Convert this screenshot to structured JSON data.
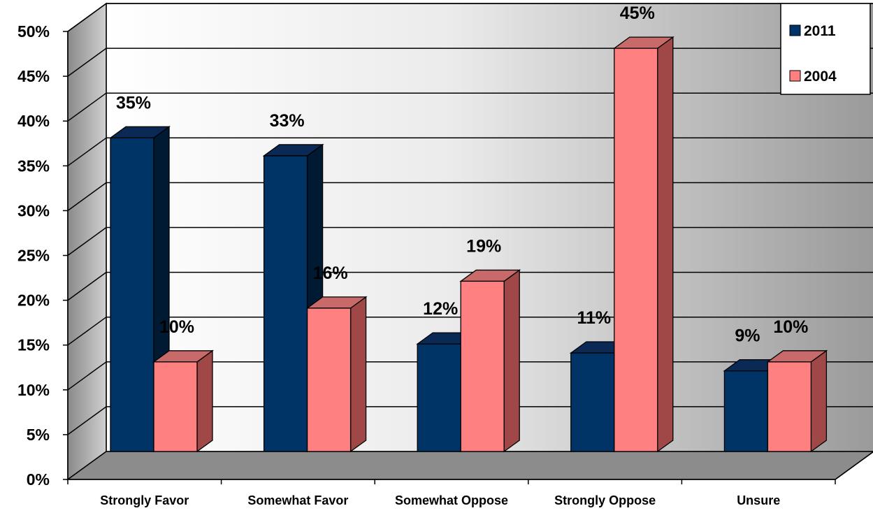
{
  "chart_data": {
    "type": "bar",
    "categories": [
      "Strongly Favor",
      "Somewhat Favor",
      "Somewhat Oppose",
      "Strongly Oppose",
      "Unsure"
    ],
    "series": [
      {
        "name": "2011",
        "values": [
          35,
          33,
          12,
          11,
          9
        ],
        "labels": [
          "35%",
          "33%",
          "12%",
          "11%",
          "9%"
        ]
      },
      {
        "name": "2004",
        "values": [
          10,
          16,
          19,
          45,
          10
        ],
        "labels": [
          "10%",
          "16%",
          "19%",
          "45%",
          "10%"
        ]
      }
    ],
    "ylim": [
      0,
      50
    ],
    "ytick_labels": [
      "0%",
      "5%",
      "10%",
      "15%",
      "20%",
      "25%",
      "30%",
      "35%",
      "40%",
      "45%",
      "50%"
    ],
    "grid": true,
    "legend_position": "top-right",
    "colors": {
      "2011": {
        "front": "#003366",
        "side": "#001a33",
        "top": "#0a2a55"
      },
      "2004": {
        "front": "#ff8080",
        "side": "#a04848",
        "top": "#c86a6a"
      },
      "wall_light": "#ffffff",
      "wall_dark": "#9a9a9a",
      "floor": "#8c8c8c"
    }
  }
}
